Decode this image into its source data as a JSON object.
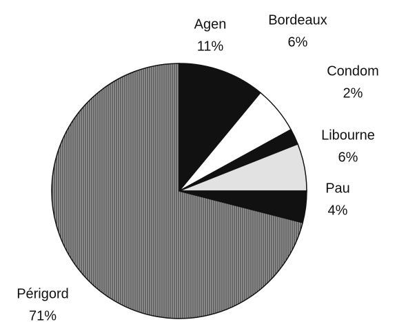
{
  "chart_data": {
    "type": "pie",
    "categories": [
      "Agen",
      "Bordeaux",
      "Condom",
      "Libourne",
      "Pau",
      "Périgord"
    ],
    "values": [
      11,
      6,
      2,
      6,
      4,
      71
    ],
    "value_labels": [
      "11%",
      "6%",
      "2%",
      "6%",
      "4%",
      "71%"
    ],
    "colors": [
      "#111111",
      "#ffffff",
      "#111111",
      "#e2e2e2",
      "#111111",
      "#8a8a8a"
    ]
  }
}
